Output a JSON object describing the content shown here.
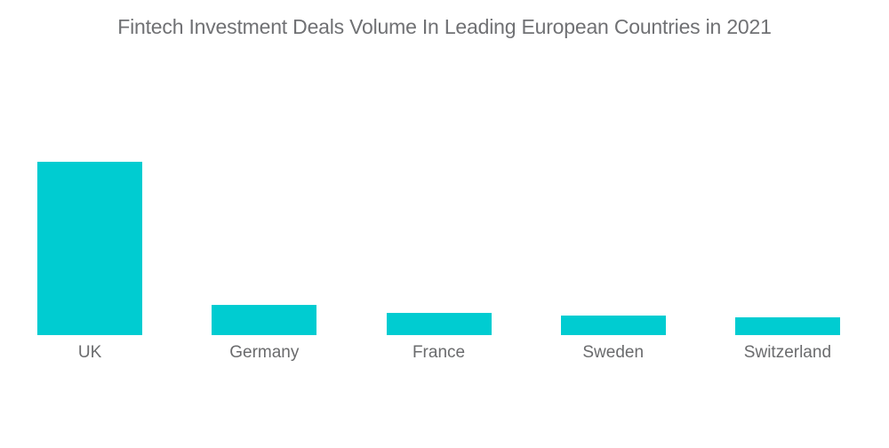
{
  "chart_data": {
    "type": "bar",
    "title": "Fintech Investment Deals Volume In Leading European Countries in 2021",
    "categories": [
      "UK",
      "Germany",
      "France",
      "Sweden",
      "Switzerland"
    ],
    "values": [
      713,
      123,
      93,
      80,
      73
    ],
    "note": "no y-axis, gridlines or data labels are shown on the chart; values are estimated from relative bar heights (UK tallest)",
    "xlabel": "",
    "ylabel": "",
    "gridlines": false,
    "legend": false,
    "axes_visible": false,
    "bar_color": "#00ccd1",
    "title_color": "#707174",
    "label_color": "#6a6b6d",
    "background_color": "#ffffff"
  }
}
